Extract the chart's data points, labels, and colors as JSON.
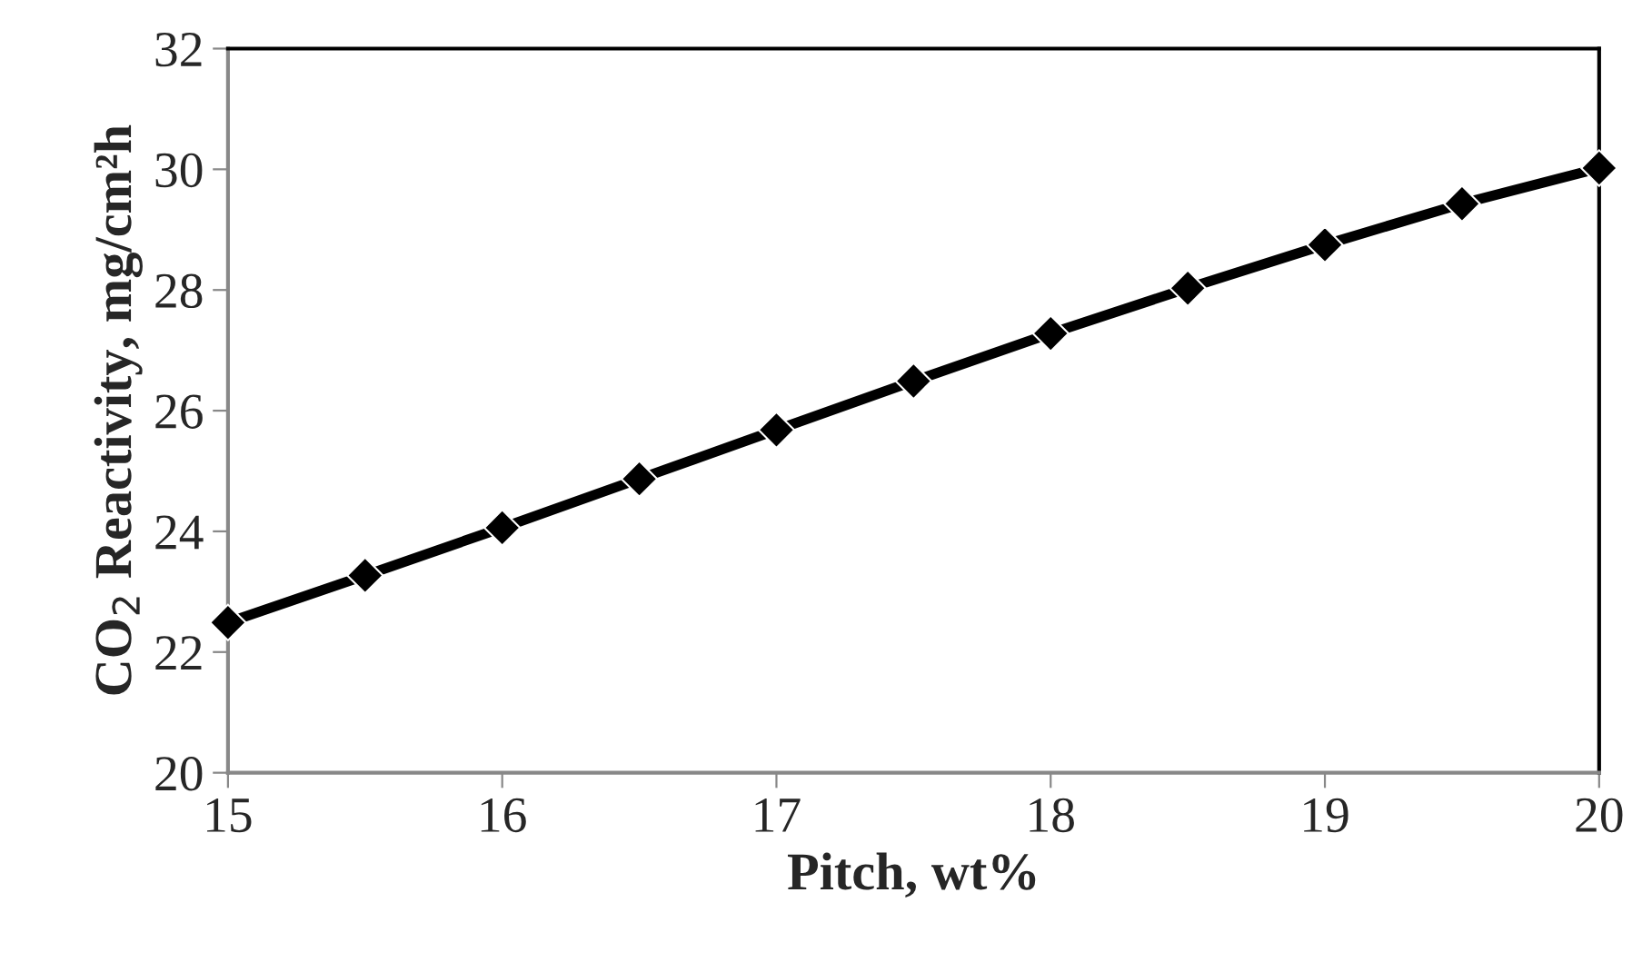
{
  "chart_data": {
    "type": "line",
    "xlabel": "Pitch, wt%",
    "ylabel": "CO$_{2}$ Reactivity, mg/cm²h",
    "x": [
      15,
      15.5,
      16,
      16.5,
      17,
      17.5,
      18,
      18.5,
      19,
      19.5,
      20
    ],
    "series": [
      {
        "color": "#000000",
        "values": [
          22.49,
          23.27,
          24.06,
          24.87,
          25.68,
          26.49,
          27.28,
          28.03,
          28.75,
          29.43,
          30.02
        ]
      }
    ],
    "xlim": [
      15,
      20
    ],
    "xticks": [
      15,
      16,
      17,
      18,
      19,
      20
    ],
    "ylim": [
      20,
      32
    ],
    "yticks": [
      20,
      22,
      24,
      26,
      28,
      30,
      32
    ],
    "grid": false,
    "marker": "diamond",
    "line_style": "solid"
  }
}
